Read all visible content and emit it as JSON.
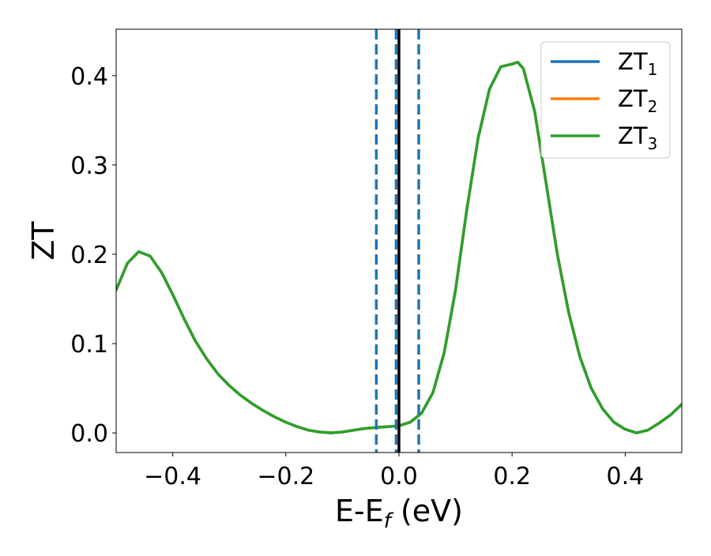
{
  "chart_data": {
    "type": "line",
    "xlabel": "E-E",
    "xlabel_sub": "f",
    "xlabel_unit": " (eV)",
    "ylabel": "ZT",
    "xlim": [
      -0.5,
      0.5
    ],
    "ylim": [
      -0.022,
      0.452
    ],
    "x_ticks": [
      -0.4,
      -0.2,
      0.0,
      0.2,
      0.4
    ],
    "x_tick_labels": [
      "−0.4",
      "−0.2",
      "0.0",
      "0.2",
      "0.4"
    ],
    "y_ticks": [
      0.0,
      0.1,
      0.2,
      0.3,
      0.4
    ],
    "y_tick_labels": [
      "0.0",
      "0.1",
      "0.2",
      "0.3",
      "0.4"
    ],
    "grid": false,
    "legend_position": "top-right",
    "vertical_lines": [
      {
        "x": -0.04,
        "style": "dashed",
        "color": "#1f77b4"
      },
      {
        "x": -0.005,
        "style": "dashed",
        "color": "#1f77b4"
      },
      {
        "x": 0.0,
        "style": "solid",
        "color": "#000000"
      },
      {
        "x": 0.035,
        "style": "dashed",
        "color": "#1f77b4"
      }
    ],
    "series": [
      {
        "name": "ZT",
        "name_sub": "1",
        "color": "#1f77b4"
      },
      {
        "name": "ZT",
        "name_sub": "2",
        "color": "#ff7f0e"
      },
      {
        "name": "ZT",
        "name_sub": "3",
        "color": "#2ca02c"
      }
    ],
    "x": [
      -0.5,
      -0.48,
      -0.46,
      -0.44,
      -0.42,
      -0.4,
      -0.38,
      -0.36,
      -0.34,
      -0.32,
      -0.3,
      -0.28,
      -0.26,
      -0.24,
      -0.22,
      -0.2,
      -0.18,
      -0.16,
      -0.14,
      -0.12,
      -0.1,
      -0.08,
      -0.06,
      -0.04,
      -0.02,
      0.0,
      0.02,
      0.04,
      0.06,
      0.08,
      0.1,
      0.12,
      0.14,
      0.16,
      0.18,
      0.2,
      0.21,
      0.22,
      0.24,
      0.26,
      0.28,
      0.3,
      0.32,
      0.34,
      0.36,
      0.38,
      0.4,
      0.42,
      0.44,
      0.46,
      0.48,
      0.5
    ],
    "y": [
      0.16,
      0.19,
      0.203,
      0.198,
      0.18,
      0.155,
      0.128,
      0.103,
      0.083,
      0.066,
      0.053,
      0.042,
      0.033,
      0.025,
      0.018,
      0.012,
      0.007,
      0.003,
      0.001,
      0.0,
      0.001,
      0.003,
      0.005,
      0.006,
      0.007,
      0.008,
      0.012,
      0.022,
      0.045,
      0.09,
      0.16,
      0.25,
      0.33,
      0.385,
      0.41,
      0.413,
      0.415,
      0.408,
      0.36,
      0.28,
      0.2,
      0.135,
      0.085,
      0.05,
      0.027,
      0.012,
      0.004,
      0.0,
      0.003,
      0.011,
      0.02,
      0.032
    ]
  }
}
